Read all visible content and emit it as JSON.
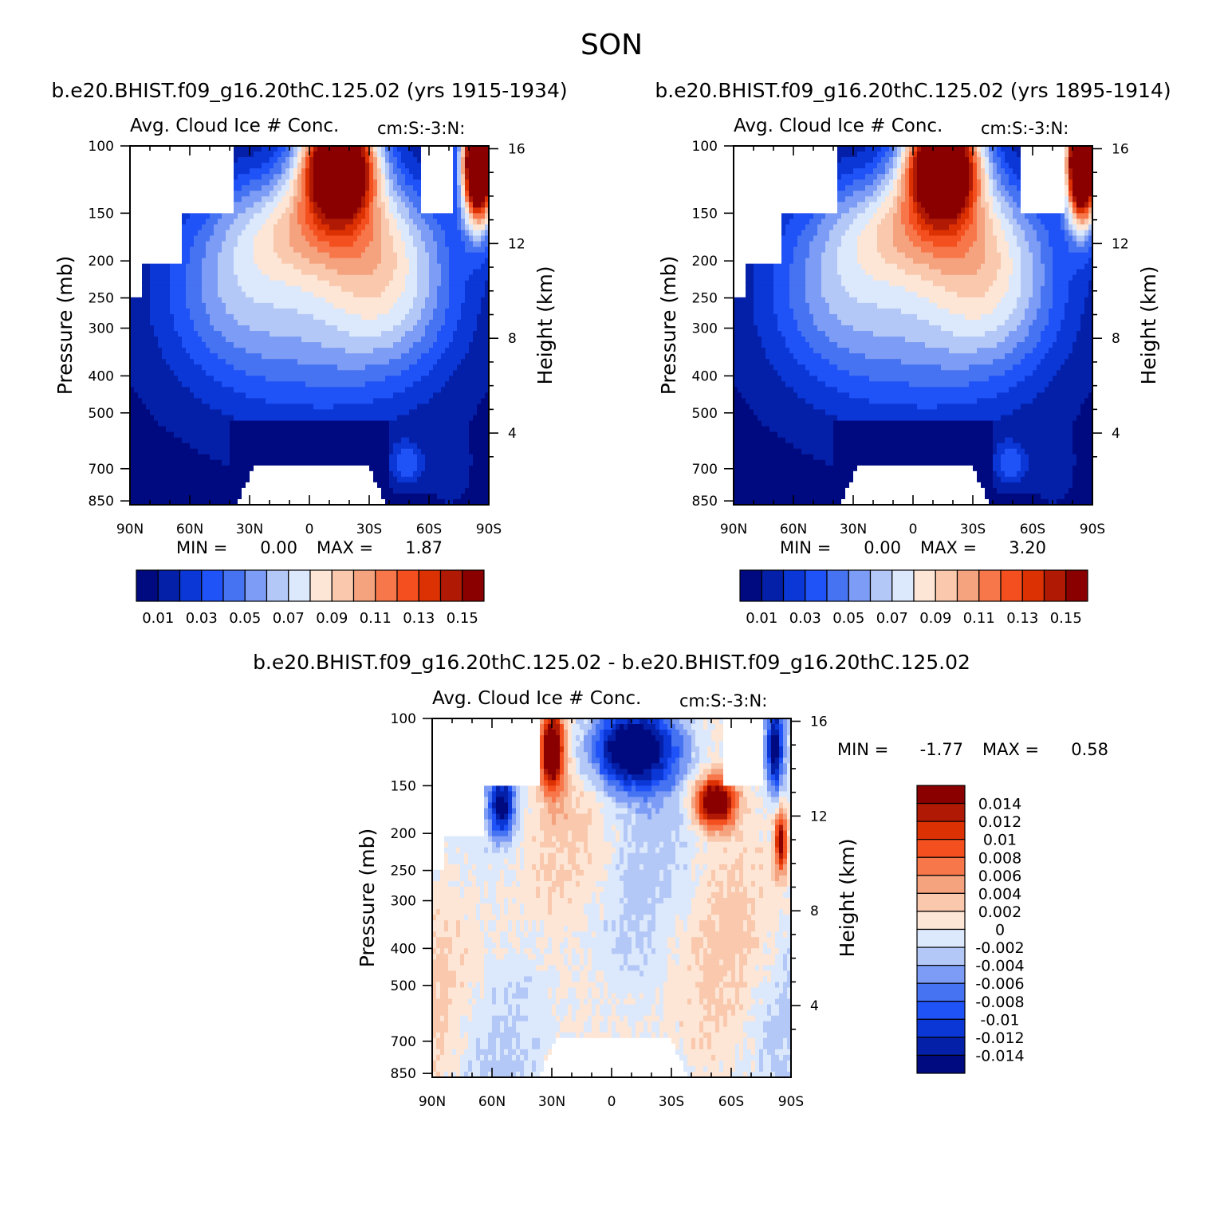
{
  "figure_title": "SON",
  "colors": {
    "seq": [
      "#000a80",
      "#0520a8",
      "#0a37d6",
      "#1f52f7",
      "#4673f2",
      "#7d9cf5",
      "#b4c8f8",
      "#dce8fb",
      "#fde6d6",
      "#f9c8ad",
      "#f5a27f",
      "#f7774a",
      "#f34f1f",
      "#dc3103",
      "#b01a05",
      "#8a0000"
    ],
    "diff": [
      "#000a80",
      "#0520a8",
      "#0a37d6",
      "#1f52f7",
      "#4673f2",
      "#7d9cf5",
      "#b4c8f8",
      "#dce8fb",
      "#fde6d6",
      "#f9c8ad",
      "#f5a27f",
      "#f7774a",
      "#f34f1f",
      "#dc3103",
      "#b01a05",
      "#8a0000"
    ],
    "missing": "#ffffff"
  },
  "chart_data": [
    {
      "type": "heatmap",
      "panel": "left",
      "case_title": "b.e20.BHIST.f09_g16.20thC.125.02 (yrs 1915-1934)",
      "variable_title": "Avg. Cloud Ice # Conc.",
      "units_label": "cm:S:-3:N:",
      "xlabel": "",
      "ylabel": "Pressure (mb)",
      "ylabel_right": "Height (km)",
      "x_ticks": [
        "90N",
        "60N",
        "30N",
        "0",
        "30S",
        "60S",
        "90S"
      ],
      "y_ticks": [
        "100",
        "150",
        "200",
        "250",
        "300",
        "400",
        "500",
        "700",
        "850"
      ],
      "y_ticks_right": [
        "16",
        "12",
        "8",
        "4"
      ],
      "min_label": "MIN =",
      "min_value": "0.00",
      "max_label": "MAX =",
      "max_value": "1.87",
      "levels": [
        0.01,
        0.02,
        0.03,
        0.04,
        0.05,
        0.06,
        0.07,
        0.08,
        0.09,
        0.1,
        0.11,
        0.12,
        0.13,
        0.14,
        0.15
      ],
      "colorbar_labels": [
        "0.01",
        "0.03",
        "0.05",
        "0.07",
        "0.09",
        "0.11",
        "0.13",
        "0.15"
      ]
    },
    {
      "type": "heatmap",
      "panel": "right",
      "case_title": "b.e20.BHIST.f09_g16.20thC.125.02 (yrs 1895-1914)",
      "variable_title": "Avg. Cloud Ice # Conc.",
      "units_label": "cm:S:-3:N:",
      "xlabel": "",
      "ylabel": "Pressure (mb)",
      "ylabel_right": "Height (km)",
      "x_ticks": [
        "90N",
        "60N",
        "30N",
        "0",
        "30S",
        "60S",
        "90S"
      ],
      "y_ticks": [
        "100",
        "150",
        "200",
        "250",
        "300",
        "400",
        "500",
        "700",
        "850"
      ],
      "y_ticks_right": [
        "16",
        "12",
        "8",
        "4"
      ],
      "min_label": "MIN =",
      "min_value": "0.00",
      "max_label": "MAX =",
      "max_value": "3.20",
      "levels": [
        0.01,
        0.02,
        0.03,
        0.04,
        0.05,
        0.06,
        0.07,
        0.08,
        0.09,
        0.1,
        0.11,
        0.12,
        0.13,
        0.14,
        0.15
      ],
      "colorbar_labels": [
        "0.01",
        "0.03",
        "0.05",
        "0.07",
        "0.09",
        "0.11",
        "0.13",
        "0.15"
      ]
    },
    {
      "type": "heatmap",
      "panel": "difference",
      "case_title": "b.e20.BHIST.f09_g16.20thC.125.02 - b.e20.BHIST.f09_g16.20thC.125.02",
      "variable_title": "Avg. Cloud Ice # Conc.",
      "units_label": "cm:S:-3:N:",
      "xlabel": "",
      "ylabel": "Pressure (mb)",
      "ylabel_right": "Height (km)",
      "x_ticks": [
        "90N",
        "60N",
        "30N",
        "0",
        "30S",
        "60S",
        "90S"
      ],
      "y_ticks": [
        "100",
        "150",
        "200",
        "250",
        "300",
        "400",
        "500",
        "700",
        "850"
      ],
      "y_ticks_right": [
        "16",
        "12",
        "8",
        "4"
      ],
      "min_label": "MIN =",
      "min_value": "-1.77",
      "max_label": "MAX =",
      "max_value": "0.58",
      "levels": [
        -0.014,
        -0.012,
        -0.01,
        -0.008,
        -0.006,
        -0.004,
        -0.002,
        0,
        0.002,
        0.004,
        0.006,
        0.008,
        0.01,
        0.012,
        0.014
      ],
      "colorbar_labels": [
        "0.014",
        "0.012",
        "0.01",
        "0.008",
        "0.006",
        "0.004",
        "0.002",
        "0",
        "-0.002",
        "-0.004",
        "-0.006",
        "-0.008",
        "-0.01",
        "-0.012",
        "-0.014"
      ]
    }
  ]
}
